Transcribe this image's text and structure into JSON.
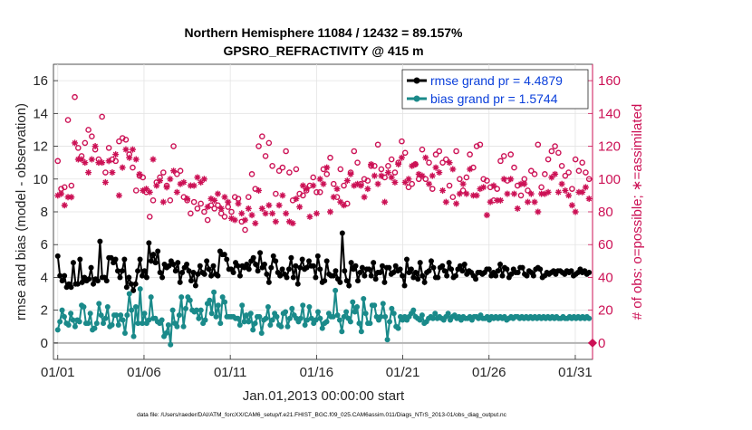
{
  "chart_data": {
    "type": "line",
    "title": "Northern Hemisphere 11084 / 12432 = 89.157%",
    "subtitle": "GPSRO_REFRACTIVITY @ 415 m",
    "xlabel": "Jan.01,2013 00:00:00 start",
    "ylabel": "rmse and bias (model - observation)",
    "ylabel_right": "# of obs: o=possible; ∗=assimilated",
    "footnote": "data file: /Users/raeder/DAI/ATM_forcXX/CAM6_setup/f.e21.FHIST_BGC.f09_025.CAM6assim.011/Diags_NTrS_2013-01/obs_diag_output.nc",
    "x_tick_labels": [
      "01/01",
      "01/06",
      "01/11",
      "01/16",
      "01/21",
      "01/26",
      "01/31"
    ],
    "x_tick_days": [
      0,
      5,
      10,
      15,
      20,
      25,
      30
    ],
    "xlim": [
      -0.25,
      31.0
    ],
    "ylim_left": [
      -1.0,
      17.0
    ],
    "ylim_right": [
      -10,
      170
    ],
    "y_ticks_left": [
      0,
      2,
      4,
      6,
      8,
      10,
      12,
      14,
      16
    ],
    "y_ticks_right": [
      0,
      20,
      40,
      60,
      80,
      100,
      120,
      140,
      160
    ],
    "grid": true,
    "legend_position": "top-right",
    "zero_line": 0,
    "series": [
      {
        "name": "rmse grand pr = 4.4879",
        "axis": "left",
        "color": "#000000",
        "marker": "filled-circle",
        "values": [
          5.3,
          4.1,
          3.8,
          4.1,
          3.4,
          3.6,
          3.4,
          4.9,
          3.6,
          3.6,
          5.1,
          3.7,
          4.0,
          3.8,
          3.9,
          4.6,
          3.6,
          3.9,
          3.8,
          6.2,
          4.0,
          4.0,
          3.8,
          5.2,
          5.2,
          4.9,
          5.1,
          4.4,
          4.0,
          4.4,
          5.1,
          3.4,
          4.0,
          3.6,
          3.2,
          3.6,
          4.4,
          5.1,
          4.1,
          4.4,
          4.0,
          6.1,
          5.0,
          5.4,
          4.9,
          5.6,
          4.3,
          4.0,
          4.8,
          4.6,
          4.7,
          5.0,
          4.8,
          4.4,
          4.9,
          3.7,
          4.3,
          4.6,
          4.8,
          4.4,
          3.8,
          4.3,
          3.5,
          4.2,
          4.7,
          4.3,
          4.2,
          5.0,
          4.5,
          4.1,
          4.7,
          4.2,
          4.1,
          5.6,
          5.4,
          5.4,
          5.1,
          4.5,
          4.5,
          4.3,
          4.9,
          4.7,
          4.1,
          4.7,
          4.6,
          4.8,
          4.5,
          5.0,
          5.2,
          4.8,
          4.4,
          5.5,
          4.6,
          4.8,
          4.2,
          3.7,
          4.6,
          5.3,
          5.0,
          4.3,
          4.1,
          4.5,
          4.2,
          4.0,
          4.5,
          5.2,
          4.0,
          4.7,
          3.6,
          4.6,
          5.1,
          4.5,
          4.6,
          5.0,
          4.7,
          4.7,
          4.0,
          5.3,
          4.5,
          3.7,
          3.8,
          5.0,
          4.2,
          4.1,
          4.1,
          4.4,
          3.9,
          3.7,
          6.7,
          4.4,
          3.8,
          3.5,
          4.9,
          4.5,
          4.7,
          3.8,
          4.3,
          4.6,
          4.1,
          4.5,
          4.5,
          4.1,
          4.9,
          3.9,
          4.3,
          4.3,
          4.7,
          3.7,
          4.6,
          4.6,
          4.2,
          4.3,
          4.7,
          4.4,
          4.5,
          4.1,
          3.5,
          5.1,
          4.3,
          4.5,
          4.0,
          4.3,
          3.9,
          4.9,
          4.1,
          3.7,
          4.3,
          4.4,
          5.0,
          4.6,
          4.0,
          4.0,
          4.6,
          4.7,
          4.4,
          4.1,
          4.9,
          4.5,
          4.0,
          4.1,
          4.5,
          4.7,
          4.4,
          4.8,
          4.2,
          4.4,
          4.3,
          4.1,
          3.9,
          4.3,
          4.3,
          4.2,
          4.3,
          4.5,
          4.5,
          4.1,
          4.3,
          4.1,
          4.4,
          4.8,
          4.1,
          4.6,
          4.5,
          4.0,
          4.2,
          4.5,
          4.3,
          4.3,
          4.6,
          4.6,
          4.2,
          4.1,
          4.4,
          4.3,
          4.1,
          4.5,
          4.6,
          4.5,
          4.0,
          4.1,
          4.3,
          4.2,
          4.3,
          4.4,
          4.2,
          4.4,
          4.4,
          4.3,
          4.2,
          4.4,
          4.3,
          4.4,
          4.1,
          4.2,
          4.3,
          4.5,
          4.3,
          4.4,
          4.2,
          4.3
        ]
      },
      {
        "name": "bias grand pr = 1.5744",
        "axis": "left",
        "color": "#1a8a8a",
        "marker": "filled-circle",
        "values": [
          0.8,
          1.3,
          2.0,
          1.6,
          1.2,
          1.1,
          1.8,
          1.4,
          1.0,
          1.4,
          1.3,
          2.3,
          2.2,
          1.2,
          1.2,
          1.8,
          0.8,
          0.9,
          1.2,
          2.4,
          1.7,
          1.2,
          1.5,
          2.2,
          1.0,
          1.1,
          1.7,
          1.7,
          1.1,
          1.7,
          1.4,
          0.6,
          1.7,
          3.0,
          2.0,
          0.4,
          2.2,
          1.2,
          3.3,
          1.2,
          1.8,
          1.2,
          1.4,
          2.8,
          1.5,
          1.5,
          1.3,
          1.2,
          1.4,
          0.4,
          0.6,
          1.1,
          -0.1,
          2.0,
          1.2,
          1.0,
          1.7,
          2.8,
          1.0,
          2.1,
          2.8,
          2.6,
          2.0,
          1.9,
          2.0,
          1.5,
          2.0,
          1.2,
          1.4,
          2.4,
          2.6,
          1.8,
          3.1,
          1.6,
          2.3,
          1.2,
          2.8,
          2.5,
          1.6,
          1.6,
          1.6,
          1.6,
          1.5,
          1.5,
          1.1,
          2.3,
          1.3,
          1.7,
          1.3,
          1.8,
          0.8,
          1.2,
          1.6,
          1.6,
          0.6,
          1.4,
          1.5,
          2.2,
          1.1,
          1.4,
          1.8,
          1.6,
          1.1,
          1.0,
          1.8,
          1.9,
          1.0,
          1.5,
          2.1,
          1.7,
          1.5,
          1.3,
          1.5,
          2.3,
          1.1,
          1.4,
          2.2,
          1.5,
          1.2,
          1.4,
          1.9,
          1.5,
          0.9,
          1.2,
          1.3,
          1.8,
          1.6,
          1.6,
          3.2,
          1.7,
          1.4,
          0.7,
          1.6,
          1.9,
          1.5,
          1.3,
          2.5,
          1.9,
          2.2,
          1.2,
          0.7,
          2.7,
          1.8,
          1.2,
          1.2,
          2.3,
          2.3,
          1.6,
          1.4,
          1.6,
          2.4,
          1.6,
          0.2,
          1.3,
          2.1,
          1.8,
          1.0,
          0.9,
          1.6,
          1.4,
          1.6,
          1.4,
          1.6,
          1.8,
          2.0,
          1.6,
          1.5,
          1.4,
          1.7,
          1.2,
          1.3,
          1.5,
          1.6,
          1.5,
          1.8,
          1.5,
          1.6,
          1.5,
          1.4,
          1.6,
          1.8,
          1.4,
          1.6,
          1.7,
          1.5,
          1.6,
          1.4,
          1.6,
          1.5,
          1.5,
          1.6,
          1.4,
          1.6,
          1.6,
          1.5,
          1.7,
          1.5,
          1.5,
          1.6,
          1.4,
          1.6,
          1.5,
          1.6,
          1.5,
          1.6,
          1.5,
          1.6,
          1.4,
          1.5,
          1.6,
          1.5,
          1.6,
          1.6,
          1.5,
          1.6,
          1.5,
          1.6,
          1.5,
          1.6,
          1.5,
          1.6,
          1.5,
          1.6,
          1.5,
          1.6,
          1.5,
          1.6,
          1.5,
          1.6,
          1.5,
          1.6,
          1.5,
          1.5,
          1.6,
          1.5,
          1.5,
          1.6,
          1.5,
          1.6,
          1.5,
          1.6,
          1.5,
          1.6,
          1.5,
          1.6,
          1.5
        ]
      },
      {
        "name": "possible",
        "axis": "right",
        "color": "#cc1155",
        "marker": "open-circle",
        "values": [
          111,
          94,
          95,
          136,
          96,
          150,
          119,
          114,
          122,
          130,
          126,
          118,
          112,
          138,
          104,
          119,
          112,
          111,
          123,
          125,
          124,
          115,
          107,
          93,
          102,
          101,
          92,
          77,
          87,
          98,
          101,
          104,
          96,
          87,
          120,
          103,
          105,
          89,
          87,
          79,
          86,
          82,
          85,
          80,
          75,
          84,
          82,
          84,
          79,
          77,
          83,
          80,
          89,
          88,
          74,
          69,
          89,
          103,
          94,
          120,
          126,
          114,
          122,
          108,
          91,
          105,
          107,
          117,
          104,
          87,
          106,
          91,
          90,
          93,
          96,
          101,
          92,
          92,
          106,
          103,
          113,
          97,
          89,
          106,
          96,
          85,
          104,
          117,
          110,
          97,
          100,
          99,
          108,
          108,
          121,
          106,
          101,
          108,
          112,
          104,
          110,
          123,
          116,
          95,
          97,
          109,
          100,
          118,
          100,
          110,
          94,
          115,
          117,
          110,
          112,
          96,
          89,
          117,
          100,
          93,
          101,
          115,
          107,
          120,
          121,
          100,
          99,
          95,
          87,
          94,
          111,
          114,
          99,
          115,
          107,
          96,
          90,
          100,
          93,
          105,
          103,
          121,
          95,
          103,
          112,
          117,
          120,
          116,
          108,
          102,
          104,
          94,
          112,
          105,
          110,
          104,
          100
        ]
      },
      {
        "name": "assimilated",
        "axis": "right",
        "color": "#cc1155",
        "marker": "asterisk",
        "values": [
          90,
          91,
          84,
          89,
          89,
          122,
          112,
          112,
          110,
          104,
          112,
          120,
          110,
          110,
          98,
          111,
          104,
          115,
          90,
          107,
          118,
          113,
          118,
          112,
          103,
          93,
          94,
          92,
          112,
          96,
          99,
          86,
          95,
          100,
          105,
          92,
          97,
          98,
          88,
          96,
          96,
          101,
          98,
          100,
          83,
          88,
          87,
          91,
          82,
          89,
          86,
          76,
          75,
          85,
          79,
          75,
          82,
          78,
          73,
          93,
          82,
          79,
          84,
          79,
          74,
          84,
          90,
          79,
          74,
          73,
          88,
          83,
          96,
          94,
          77,
          96,
          79,
          100,
          97,
          107,
          80,
          89,
          94,
          86,
          84,
          99,
          103,
          96,
          97,
          96,
          89,
          94,
          109,
          102,
          97,
          102,
          86,
          104,
          101,
          98,
          109,
          113,
          98,
          100,
          108,
          109,
          103,
          102,
          113,
          97,
          102,
          107,
          104,
          93,
          86,
          110,
          106,
          85,
          91,
          97,
          91,
          106,
          90,
          90,
          94,
          95,
          78,
          86,
          96,
          87,
          87,
          100,
          91,
          100,
          91,
          82,
          97,
          97,
          86,
          91,
          86,
          80,
          91,
          91,
          92,
          101,
          103,
          92,
          97,
          93,
          90,
          84,
          80,
          92,
          92,
          95,
          88
        ]
      }
    ]
  }
}
